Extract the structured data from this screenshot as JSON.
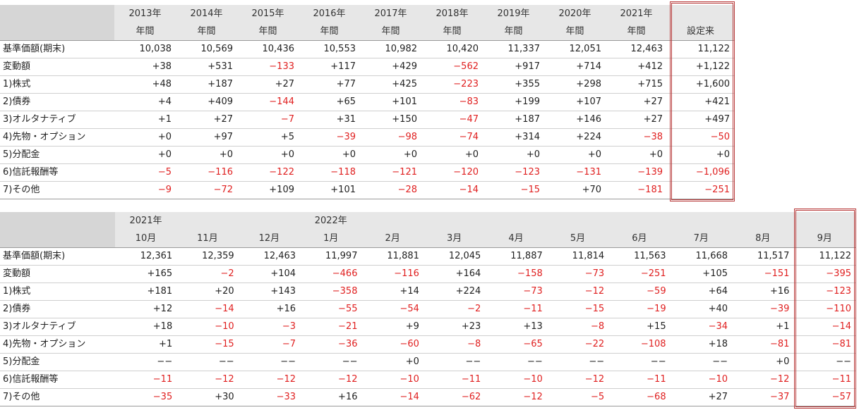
{
  "row_labels": [
    "基準価額(期末)",
    "変動額",
    "1)株式",
    "2)債券",
    "3)オルタナティブ",
    "4)先物・オプション",
    "5)分配金",
    "6)信託報酬等",
    "7)その他"
  ],
  "annual": {
    "header_top": [
      "2013年",
      "2014年",
      "2015年",
      "2016年",
      "2017年",
      "2018年",
      "2019年",
      "2020年",
      "2021年",
      ""
    ],
    "header_bottom": [
      "年間",
      "年間",
      "年間",
      "年間",
      "年間",
      "年間",
      "年間",
      "年間",
      "年間",
      "設定来"
    ],
    "rows": [
      [
        "10,038",
        "10,569",
        "10,436",
        "10,553",
        "10,982",
        "10,420",
        "11,337",
        "12,051",
        "12,463",
        "11,122"
      ],
      [
        "+38",
        "+531",
        "−133",
        "+117",
        "+429",
        "−562",
        "+917",
        "+714",
        "+412",
        "+1,122"
      ],
      [
        "+48",
        "+187",
        "+27",
        "+77",
        "+425",
        "−223",
        "+355",
        "+298",
        "+715",
        "+1,600"
      ],
      [
        "+4",
        "+409",
        "−144",
        "+65",
        "+101",
        "−83",
        "+199",
        "+107",
        "+27",
        "+421"
      ],
      [
        "+1",
        "+27",
        "−7",
        "+31",
        "+150",
        "−47",
        "+187",
        "+146",
        "+27",
        "+497"
      ],
      [
        "+0",
        "+97",
        "+5",
        "−39",
        "−98",
        "−74",
        "+314",
        "+224",
        "−38",
        "−50"
      ],
      [
        "+0",
        "+0",
        "+0",
        "+0",
        "+0",
        "+0",
        "+0",
        "+0",
        "+0",
        "+0"
      ],
      [
        "−5",
        "−116",
        "−122",
        "−118",
        "−121",
        "−120",
        "−123",
        "−131",
        "−139",
        "−1,096"
      ],
      [
        "−9",
        "−72",
        "+109",
        "+101",
        "−28",
        "−14",
        "−15",
        "+70",
        "−181",
        "−251"
      ]
    ]
  },
  "monthly": {
    "header_top": [
      "2021年",
      "",
      "",
      "2022年",
      "",
      "",
      "",
      "",
      "",
      "",
      "",
      ""
    ],
    "header_bottom": [
      "10月",
      "11月",
      "12月",
      "1月",
      "2月",
      "3月",
      "4月",
      "5月",
      "6月",
      "7月",
      "8月",
      "9月"
    ],
    "rows": [
      [
        "12,361",
        "12,359",
        "12,463",
        "11,997",
        "11,881",
        "12,045",
        "11,887",
        "11,814",
        "11,563",
        "11,668",
        "11,517",
        "11,122"
      ],
      [
        "+165",
        "−2",
        "+104",
        "−466",
        "−116",
        "+164",
        "−158",
        "−73",
        "−251",
        "+105",
        "−151",
        "−395"
      ],
      [
        "+181",
        "+20",
        "+143",
        "−358",
        "+14",
        "+224",
        "−73",
        "−12",
        "−59",
        "+64",
        "+16",
        "−123"
      ],
      [
        "+12",
        "−14",
        "+16",
        "−55",
        "−54",
        "−2",
        "−11",
        "−15",
        "−19",
        "+40",
        "−39",
        "−110"
      ],
      [
        "+18",
        "−10",
        "−3",
        "−21",
        "+9",
        "+23",
        "+13",
        "−8",
        "+15",
        "−34",
        "+1",
        "−14"
      ],
      [
        "+1",
        "−15",
        "−7",
        "−36",
        "−60",
        "−8",
        "−65",
        "−22",
        "−108",
        "+18",
        "−81",
        "−81"
      ],
      [
        "−−",
        "−−",
        "−−",
        "−−",
        "+0",
        "−−",
        "−−",
        "−−",
        "−−",
        "−−",
        "+0",
        "−−"
      ],
      [
        "−11",
        "−12",
        "−12",
        "−12",
        "−10",
        "−11",
        "−10",
        "−12",
        "−11",
        "−10",
        "−12",
        "−11"
      ],
      [
        "−35",
        "+30",
        "−33",
        "+16",
        "−14",
        "−62",
        "−12",
        "−5",
        "−68",
        "+27",
        "−37",
        "−57"
      ]
    ]
  },
  "colors": {
    "negative": "#e02020",
    "highlight_border": "#b83a3a",
    "header_bg": "#e7e7e7"
  }
}
